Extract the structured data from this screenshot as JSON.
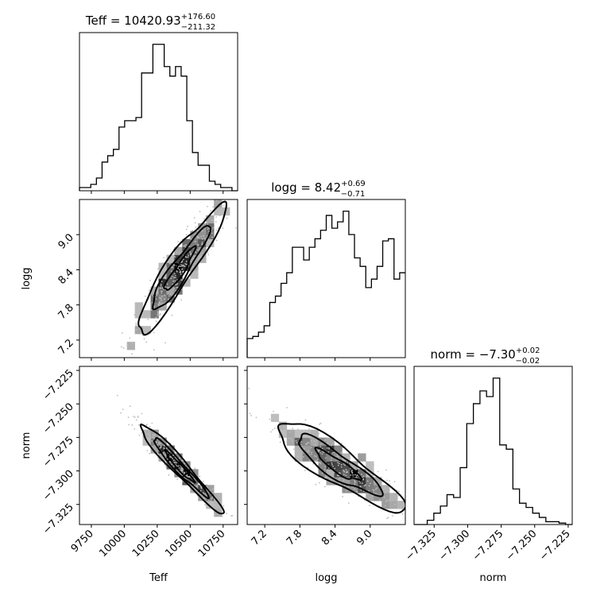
{
  "chart_data": {
    "type": "corner",
    "parameters": [
      "Teff",
      "logg",
      "norm"
    ],
    "titles": [
      {
        "param": "Teff",
        "median": "10420.93",
        "plus": "+176.60",
        "minus": "−211.32"
      },
      {
        "param": "logg",
        "median": "8.42",
        "plus": "+0.69",
        "minus": "−0.71"
      },
      {
        "param": "norm",
        "median": "−7.30",
        "plus": "+0.02",
        "minus": "−0.02"
      }
    ],
    "axes": {
      "Teff": {
        "range": [
          9660,
          10860
        ],
        "ticks": [
          9750,
          10000,
          10250,
          10500,
          10750
        ],
        "ticklabels": [
          "9750",
          "10000",
          "10250",
          "10500",
          "10750"
        ]
      },
      "logg": {
        "range": [
          6.9,
          9.6
        ],
        "ticks": [
          7.2,
          7.8,
          8.4,
          9.0
        ],
        "ticklabels": [
          "7.2",
          "7.8",
          "8.4",
          "9.0"
        ]
      },
      "norm": {
        "range": [
          -7.34,
          -7.222
        ],
        "ticks": [
          -7.325,
          -7.3,
          -7.275,
          -7.25,
          -7.225
        ],
        "ticklabels": [
          "−7.325",
          "−7.300",
          "−7.275",
          "−7.250",
          "−7.225"
        ]
      }
    },
    "histograms": {
      "Teff": {
        "counts": [
          1,
          1,
          2,
          4,
          9,
          11,
          13,
          20,
          22,
          22,
          23,
          37,
          37,
          46,
          46,
          39,
          36,
          39,
          36,
          22,
          12,
          8,
          8,
          3,
          2,
          1,
          1,
          0
        ]
      },
      "logg": {
        "counts": [
          9,
          10,
          12,
          15,
          26,
          29,
          35,
          40,
          52,
          52,
          46,
          52,
          56,
          60,
          67,
          61,
          64,
          69,
          58,
          47,
          43,
          33,
          37,
          43,
          55,
          56,
          37,
          40
        ]
      },
      "norm": {
        "counts": [
          0,
          0,
          3,
          8,
          13,
          21,
          19,
          40,
          71,
          85,
          94,
          90,
          103,
          56,
          53,
          25,
          15,
          12,
          8,
          5,
          2,
          2,
          1,
          0
        ]
      }
    },
    "scatter_pairs": [
      {
        "x": "Teff",
        "y": "logg"
      },
      {
        "x": "Teff",
        "y": "norm"
      },
      {
        "x": "logg",
        "y": "norm"
      }
    ],
    "xlabels": [
      "Teff",
      "logg",
      "norm"
    ],
    "ylabels": [
      "logg",
      "norm"
    ]
  }
}
